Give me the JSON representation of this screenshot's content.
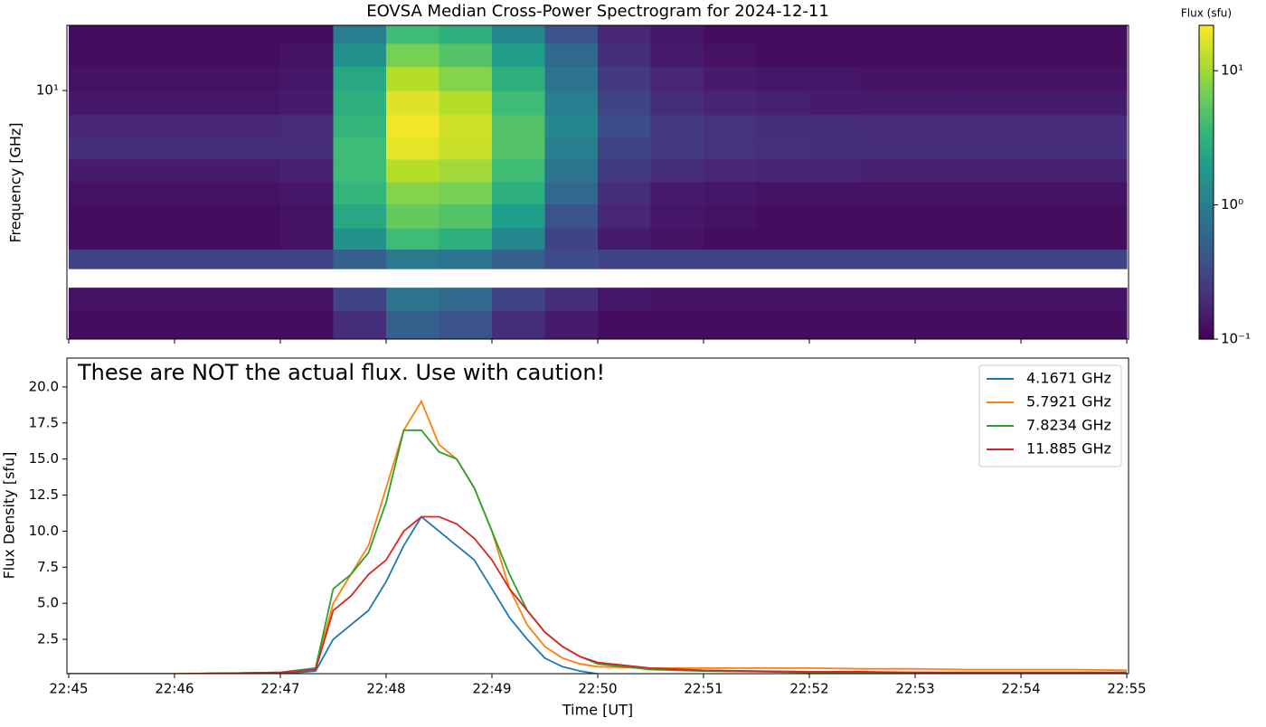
{
  "chart_data": [
    {
      "type": "heatmap",
      "title": "EOVSA Median Cross-Power Spectrogram for 2024-12-11",
      "ylabel": "Frequency [GHz]",
      "colorbar_label": "Flux (sfu)",
      "colormap": "viridis",
      "log_y": true,
      "log_color": true,
      "xlim": [
        "22:44:59",
        "22:55:01"
      ],
      "xticks": [
        "22:45",
        "22:46",
        "22:47",
        "22:48",
        "22:49",
        "22:50",
        "22:51",
        "22:52",
        "22:53",
        "22:54",
        "22:55"
      ],
      "ylim": [
        1,
        18.3
      ],
      "yticks": [
        {
          "value": 10,
          "label": "10¹"
        }
      ],
      "clim": [
        0.1,
        21.8
      ],
      "cticks": [
        {
          "value": 0.1,
          "label": "10⁻¹"
        },
        {
          "value": 1,
          "label": "10⁰"
        },
        {
          "value": 10,
          "label": "10¹"
        }
      ],
      "time_edges": [
        "22:45:00",
        "22:45:30",
        "22:46:00",
        "22:46:30",
        "22:47:00",
        "22:47:30",
        "22:48:00",
        "22:48:30",
        "22:49:00",
        "22:49:30",
        "22:50:00",
        "22:50:30",
        "22:51:00",
        "22:51:30",
        "22:52:00",
        "22:52:30",
        "22:53:00",
        "22:53:30",
        "22:54:00",
        "22:54:30",
        "22:55:00"
      ],
      "freq_edges": [
        1.0,
        1.3,
        1.61,
        1.92,
        2.3,
        2.8,
        3.5,
        4.3,
        5.3,
        6.5,
        8,
        10,
        12.5,
        15.5,
        18.3
      ],
      "z": [
        [
          0.12,
          0.12,
          0.12,
          0.12,
          0.12,
          0.2,
          0.5,
          0.4,
          0.2,
          0.15,
          0.12,
          0.12,
          0.12,
          0.12,
          0.12,
          0.12,
          0.12,
          0.12,
          0.12,
          0.12
        ],
        [
          0.13,
          0.13,
          0.13,
          0.13,
          0.13,
          0.3,
          0.8,
          0.6,
          0.3,
          0.2,
          0.14,
          0.13,
          0.13,
          0.13,
          0.13,
          0.13,
          0.13,
          0.13,
          0.13,
          0.13
        ],
        [
          null,
          null,
          null,
          null,
          null,
          null,
          null,
          null,
          null,
          null,
          null,
          null,
          null,
          null,
          null,
          null,
          null,
          null,
          null,
          null
        ],
        [
          0.3,
          0.3,
          0.3,
          0.3,
          0.3,
          0.5,
          0.9,
          0.8,
          0.5,
          0.35,
          0.3,
          0.3,
          0.3,
          0.3,
          0.3,
          0.3,
          0.3,
          0.3,
          0.3,
          0.3
        ],
        [
          0.12,
          0.12,
          0.12,
          0.12,
          0.13,
          1.5,
          4,
          3,
          1.2,
          0.3,
          0.15,
          0.13,
          0.12,
          0.12,
          0.12,
          0.12,
          0.12,
          0.12,
          0.12,
          0.12
        ],
        [
          0.12,
          0.12,
          0.12,
          0.12,
          0.13,
          2.5,
          6,
          5,
          2,
          0.4,
          0.18,
          0.14,
          0.13,
          0.12,
          0.12,
          0.12,
          0.12,
          0.12,
          0.12,
          0.12
        ],
        [
          0.13,
          0.13,
          0.13,
          0.13,
          0.14,
          3.5,
          8,
          7,
          3,
          0.6,
          0.2,
          0.15,
          0.14,
          0.13,
          0.13,
          0.13,
          0.13,
          0.13,
          0.13,
          0.13
        ],
        [
          0.15,
          0.15,
          0.15,
          0.15,
          0.16,
          4,
          12,
          10,
          4,
          0.8,
          0.25,
          0.2,
          0.18,
          0.17,
          0.17,
          0.16,
          0.16,
          0.16,
          0.16,
          0.16
        ],
        [
          0.2,
          0.2,
          0.2,
          0.2,
          0.2,
          4,
          18,
          14,
          5,
          1.0,
          0.3,
          0.25,
          0.22,
          0.21,
          0.2,
          0.2,
          0.2,
          0.2,
          0.2,
          0.2
        ],
        [
          0.18,
          0.18,
          0.18,
          0.18,
          0.19,
          3.5,
          20,
          15,
          5,
          1.2,
          0.35,
          0.25,
          0.22,
          0.2,
          0.2,
          0.19,
          0.19,
          0.19,
          0.19,
          0.19
        ],
        [
          0.14,
          0.14,
          0.14,
          0.14,
          0.15,
          3,
          17,
          12,
          4,
          1,
          0.3,
          0.2,
          0.17,
          0.16,
          0.15,
          0.15,
          0.15,
          0.15,
          0.15,
          0.15
        ],
        [
          0.13,
          0.13,
          0.13,
          0.13,
          0.14,
          2.5,
          12,
          8,
          3,
          0.8,
          0.25,
          0.18,
          0.15,
          0.14,
          0.14,
          0.13,
          0.13,
          0.13,
          0.13,
          0.13
        ],
        [
          0.12,
          0.12,
          0.12,
          0.12,
          0.13,
          1.5,
          7,
          5,
          2,
          0.6,
          0.2,
          0.15,
          0.13,
          0.12,
          0.12,
          0.12,
          0.12,
          0.12,
          0.12,
          0.12
        ],
        [
          0.12,
          0.12,
          0.12,
          0.12,
          0.12,
          1,
          4,
          3,
          1.2,
          0.4,
          0.18,
          0.14,
          0.12,
          0.12,
          0.12,
          0.12,
          0.12,
          0.12,
          0.12,
          0.12
        ]
      ]
    },
    {
      "type": "line",
      "xlabel": "Time [UT]",
      "ylabel": "Flux Density [sfu]",
      "annotation": "These are NOT the actual flux. Use with caution!",
      "legend": "upper right",
      "xlim": [
        "22:44:59",
        "22:55:01"
      ],
      "xticks": [
        "22:45",
        "22:46",
        "22:47",
        "22:48",
        "22:49",
        "22:50",
        "22:51",
        "22:52",
        "22:53",
        "22:54",
        "22:55"
      ],
      "ylim": [
        0.12,
        22
      ],
      "yticks": [
        2.5,
        {
          "value": 5,
          "label": "5.0"
        },
        7.5,
        {
          "value": 10,
          "label": "10.0"
        },
        12.5,
        {
          "value": 15,
          "label": "15.0"
        },
        17.5,
        {
          "value": 20,
          "label": "20.0"
        }
      ],
      "x": [
        "22:45:00",
        "22:46:00",
        "22:47:00",
        "22:47:20",
        "22:47:30",
        "22:47:40",
        "22:47:50",
        "22:48:00",
        "22:48:10",
        "22:48:20",
        "22:48:30",
        "22:48:40",
        "22:48:50",
        "22:49:00",
        "22:49:10",
        "22:49:20",
        "22:49:30",
        "22:49:40",
        "22:49:50",
        "22:50:00",
        "22:50:30",
        "22:51:00",
        "22:51:30",
        "22:52:00",
        "22:52:30",
        "22:53:00",
        "22:53:30",
        "22:54:00",
        "22:54:30",
        "22:55:00"
      ],
      "series": [
        {
          "name": "4.1671 GHz",
          "color": "#1f77b4",
          "values": [
            0.1,
            0.1,
            0.1,
            0.3,
            2.5,
            3.5,
            4.5,
            6.5,
            9,
            11,
            10,
            9,
            8,
            6,
            4,
            2.5,
            1.2,
            0.6,
            0.3,
            0.1,
            0.05,
            0.05,
            0.05,
            0.05,
            0.05,
            0.05,
            0.05,
            0.05,
            0.05,
            0.05
          ]
        },
        {
          "name": "5.7921 GHz",
          "color": "#ff7f0e",
          "values": [
            0.1,
            0.1,
            0.2,
            0.5,
            5,
            7,
            9,
            13,
            17,
            19,
            16,
            15,
            13,
            10,
            6,
            3.5,
            2,
            1.2,
            0.8,
            0.6,
            0.5,
            0.5,
            0.5,
            0.5,
            0.45,
            0.45,
            0.4,
            0.4,
            0.4,
            0.35
          ]
        },
        {
          "name": "7.8234 GHz",
          "color": "#2ca02c",
          "values": [
            0.1,
            0.1,
            0.2,
            0.5,
            6,
            7,
            8.5,
            12,
            17,
            17,
            15.5,
            15,
            13,
            10,
            7,
            4.5,
            3,
            2,
            1.3,
            0.8,
            0.4,
            0.3,
            0.25,
            0.2,
            0.2,
            0.2,
            0.2,
            0.2,
            0.2,
            0.2
          ]
        },
        {
          "name": "11.885 GHz",
          "color": "#d62728",
          "values": [
            0.1,
            0.1,
            0.2,
            0.4,
            4.5,
            5.5,
            7,
            8,
            10,
            11,
            11,
            10.5,
            9.5,
            8,
            6,
            4.5,
            3,
            2,
            1.3,
            0.9,
            0.5,
            0.35,
            0.3,
            0.25,
            0.25,
            0.2,
            0.2,
            0.2,
            0.2,
            0.2
          ]
        }
      ]
    }
  ]
}
